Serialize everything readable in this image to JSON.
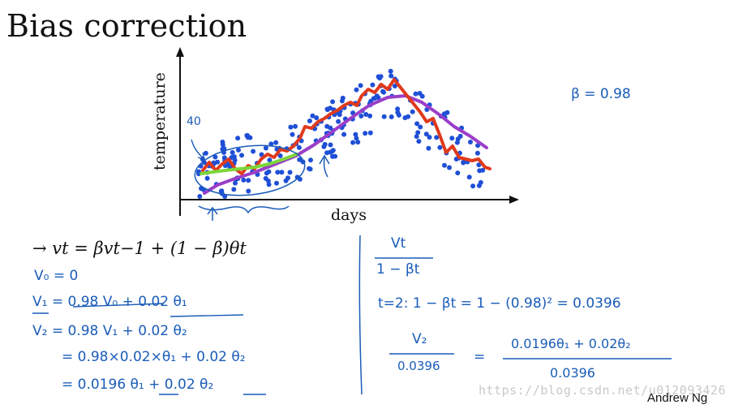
{
  "slide": {
    "title": "Bias correction",
    "author": "Andrew Ng",
    "watermark": "https://blog.csdn.net/u012093426"
  },
  "plot": {
    "ylabel": "temperature",
    "xlabel": "days",
    "annotation_40": "40",
    "beta_note": "β = 0.98",
    "colors": {
      "points": "#1f4fd6",
      "ewa_red": "#e03a1c",
      "ewa_purple": "#9a3ec9",
      "ewa_green": "#7cd63a",
      "ink": "#1a5cb8"
    }
  },
  "formula": {
    "main": "→ vt = βvt−1 + (1 − β)θt",
    "lines": [
      "V₀ = 0",
      "V₁ = 0.98 V₀ + 0.02 θ₁",
      "V₂ = 0.98 V₁ + 0.02 θ₂",
      "= 0.98×0.02×θ₁ + 0.02 θ₂",
      "= 0.0196 θ₁ + 0.02 θ₂"
    ]
  },
  "right_notes": {
    "fraction_num": "Vt",
    "fraction_den": "1 − βt",
    "t2_line": "t=2:   1 − βt  =  1 − (0.98)²  =  0.0396",
    "v2_num": "V₂",
    "v2_den": "0.0396",
    "eq_sign": "=",
    "rhs_num": "0.0196θ₁ + 0.02θ₂",
    "rhs_den": "0.0396"
  }
}
